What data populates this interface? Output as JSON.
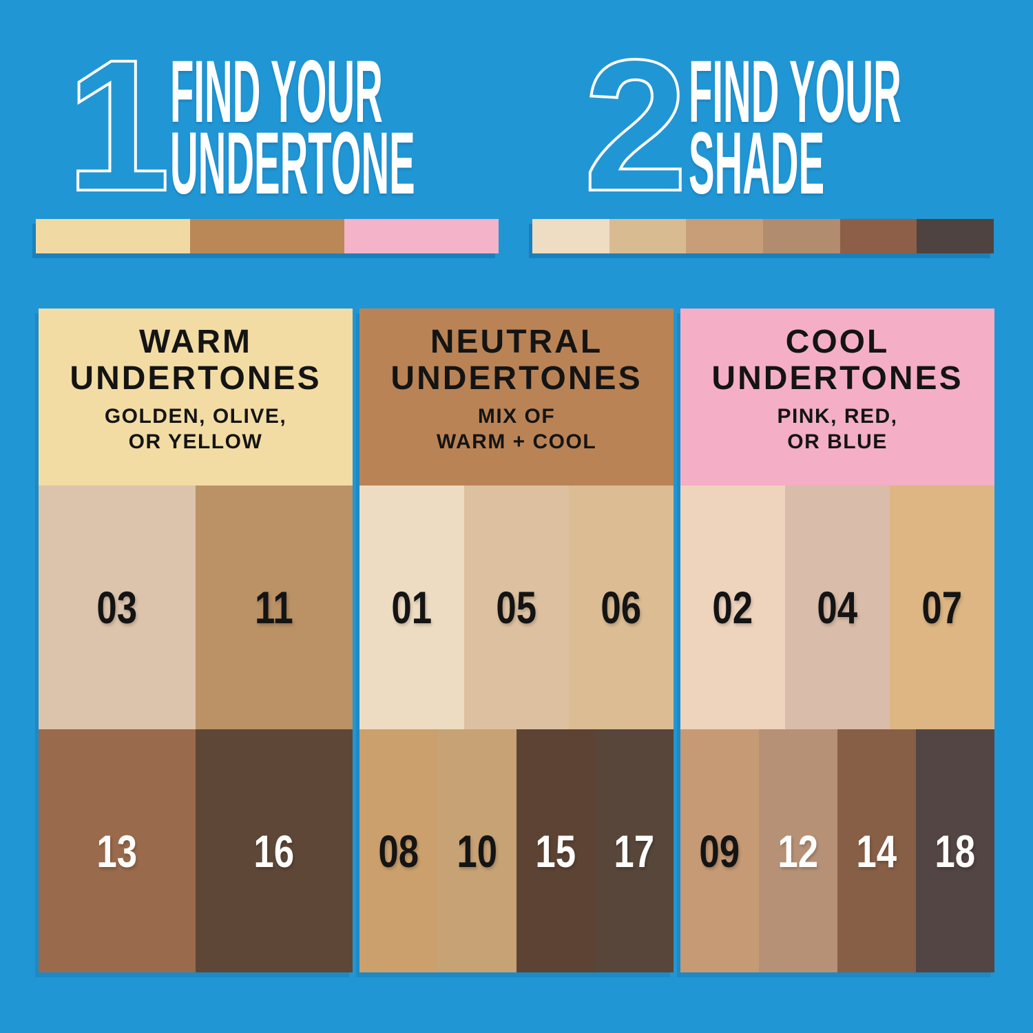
{
  "background": "#2196D5",
  "steps": [
    {
      "number": "1",
      "line1": "FIND YOUR",
      "line2": "UNDERTONE",
      "strip": [
        "#F0D9A2",
        "#BA8757",
        "#F4B3C8"
      ]
    },
    {
      "number": "2",
      "line1": "FIND YOUR",
      "line2": "SHADE",
      "strip": [
        "#EEDCC3",
        "#D9BB92",
        "#C79E78",
        "#B18C6F",
        "#8D5F48",
        "#4E4340"
      ]
    }
  ],
  "columns": [
    {
      "title": "WARM\nUNDERTONES",
      "subtitle": "GOLDEN, OLIVE,\nOR YELLOW",
      "header_bg": "#F2DCA4",
      "header_text": "#141414",
      "rows": [
        [
          {
            "id": "03",
            "color": "#DCC3AB",
            "text": "#141414"
          },
          {
            "id": "11",
            "color": "#BB9166",
            "text": "#141414"
          }
        ],
        [
          {
            "id": "13",
            "color": "#9A6A4C",
            "text": "#FDFDFC"
          },
          {
            "id": "16",
            "color": "#5E4736",
            "text": "#FDFDFC"
          }
        ]
      ]
    },
    {
      "title": "NEUTRAL\nUNDERTONES",
      "subtitle": "MIX OF\nWARM + COOL",
      "header_bg": "#BA8355",
      "header_text": "#141414",
      "rows": [
        [
          {
            "id": "01",
            "color": "#EEDCC2",
            "text": "#141414"
          },
          {
            "id": "05",
            "color": "#DCC0A0",
            "text": "#141414"
          },
          {
            "id": "06",
            "color": "#DBBC93",
            "text": "#141414"
          }
        ],
        [
          {
            "id": "08",
            "color": "#CBA06C",
            "text": "#141414"
          },
          {
            "id": "10",
            "color": "#C7A274",
            "text": "#141414"
          },
          {
            "id": "15",
            "color": "#5D4334",
            "text": "#FDFDFC"
          },
          {
            "id": "17",
            "color": "#574639",
            "text": "#FDFDFC"
          }
        ]
      ]
    },
    {
      "title": "COOL\nUNDERTONES",
      "subtitle": "PINK, RED,\nOR BLUE",
      "header_bg": "#F4AEC5",
      "header_text": "#141414",
      "rows": [
        [
          {
            "id": "02",
            "color": "#EED3BD",
            "text": "#141414"
          },
          {
            "id": "04",
            "color": "#D9BCA9",
            "text": "#141414"
          },
          {
            "id": "07",
            "color": "#DDB683",
            "text": "#141414"
          }
        ],
        [
          {
            "id": "09",
            "color": "#C69A74",
            "text": "#141414"
          },
          {
            "id": "12",
            "color": "#B69176",
            "text": "#FDFDFC"
          },
          {
            "id": "14",
            "color": "#875F46",
            "text": "#FDFDFC"
          },
          {
            "id": "18",
            "color": "#524544",
            "text": "#FDFDFC"
          }
        ]
      ]
    }
  ]
}
